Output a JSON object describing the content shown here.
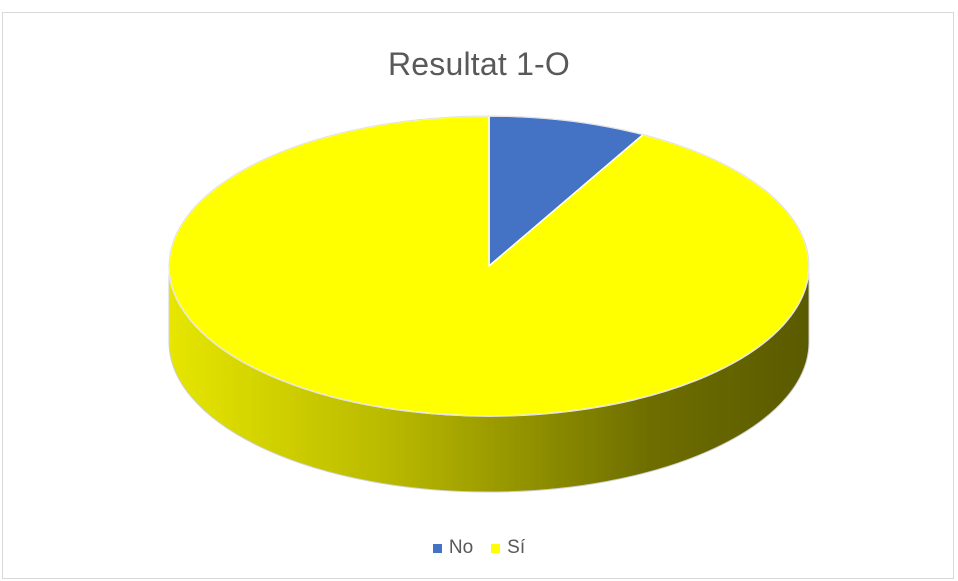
{
  "chart_data": {
    "type": "pie",
    "title": "Resultat 1-O",
    "three_d": true,
    "legend_position": "bottom",
    "slices": [
      {
        "label": "No",
        "value": 8,
        "color": "#4472C4"
      },
      {
        "label": "Sí",
        "value": 92,
        "color": "#FFFF00"
      }
    ],
    "start_angle_deg": 0,
    "direction": "clockwise"
  }
}
